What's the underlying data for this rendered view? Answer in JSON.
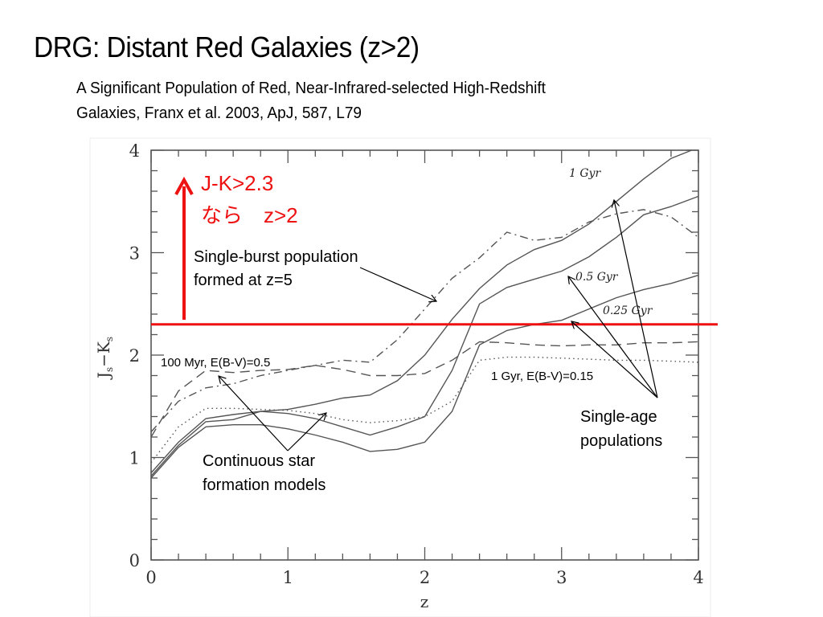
{
  "slide": {
    "title": "DRG: Distant Red Galaxies (z>2)",
    "subtitle_line1": "A Significant Population of Red, Near-Infrared-selected High-Redshift",
    "subtitle_line2": "Galaxies, Franx et al. 2003, ApJ, 587, L79"
  },
  "chart_data": {
    "type": "line",
    "title": "",
    "xlabel": "z",
    "ylabel": "Js−Ks",
    "ylabel_main_J": "J",
    "ylabel_sub": "s",
    "ylabel_minus": "−",
    "ylabel_main_K": "K",
    "xlim": [
      0,
      4
    ],
    "ylim": [
      0,
      4
    ],
    "x_ticks": [
      0,
      1,
      2,
      3,
      4
    ],
    "x_tick_labels": [
      "0",
      "1",
      "2",
      "3",
      "4"
    ],
    "y_ticks": [
      0,
      1,
      2,
      3,
      4
    ],
    "y_tick_labels": [
      "0",
      "1",
      "2",
      "3",
      "4"
    ],
    "x_minor_step": 0.2,
    "y_minor_step": 0.2,
    "grid": false,
    "threshold": {
      "value": 2.3,
      "color": "#ee1111",
      "label_line1": "J-K>2.3",
      "label_line2": "なら　z>2"
    },
    "series": [
      {
        "name": "1 Gyr single-age",
        "style": "solid",
        "x": [
          0,
          0.2,
          0.4,
          0.6,
          0.8,
          1.0,
          1.2,
          1.4,
          1.6,
          1.8,
          2.0,
          2.2,
          2.4,
          2.6,
          2.8,
          3.0,
          3.2,
          3.4,
          3.6,
          3.8,
          3.95
        ],
        "y": [
          0.85,
          1.15,
          1.38,
          1.42,
          1.45,
          1.47,
          1.52,
          1.58,
          1.61,
          1.75,
          2.0,
          2.35,
          2.65,
          2.88,
          3.03,
          3.12,
          3.28,
          3.5,
          3.72,
          3.92,
          4.0
        ]
      },
      {
        "name": "0.5 Gyr single-age",
        "style": "solid",
        "x": [
          0,
          0.2,
          0.4,
          0.6,
          0.8,
          1.0,
          1.2,
          1.4,
          1.6,
          1.8,
          2.0,
          2.2,
          2.4,
          2.6,
          2.8,
          3.0,
          3.2,
          3.4,
          3.6,
          3.8,
          4.0
        ],
        "y": [
          0.82,
          1.12,
          1.35,
          1.37,
          1.45,
          1.43,
          1.38,
          1.3,
          1.22,
          1.3,
          1.4,
          1.85,
          2.5,
          2.66,
          2.74,
          2.82,
          2.96,
          3.15,
          3.37,
          3.45,
          3.55
        ]
      },
      {
        "name": "0.25 Gyr single-age",
        "style": "solid",
        "x": [
          0,
          0.2,
          0.4,
          0.6,
          0.8,
          1.0,
          1.2,
          1.4,
          1.6,
          1.8,
          2.0,
          2.2,
          2.4,
          2.6,
          2.8,
          3.0,
          3.2,
          3.4,
          3.6,
          3.8,
          4.0
        ],
        "y": [
          0.8,
          1.1,
          1.3,
          1.32,
          1.32,
          1.28,
          1.22,
          1.15,
          1.06,
          1.08,
          1.15,
          1.45,
          2.1,
          2.24,
          2.3,
          2.34,
          2.45,
          2.56,
          2.64,
          2.7,
          2.78
        ]
      },
      {
        "name": "Single-burst population formed at z=5",
        "style": "dashdot",
        "x": [
          0,
          0.2,
          0.4,
          0.6,
          0.8,
          1.0,
          1.2,
          1.4,
          1.6,
          1.8,
          2.0,
          2.2,
          2.4,
          2.6,
          2.8,
          3.0,
          3.2,
          3.4,
          3.6,
          3.8,
          4.0
        ],
        "y": [
          1.25,
          1.55,
          1.68,
          1.72,
          1.8,
          1.85,
          1.9,
          1.95,
          1.93,
          2.15,
          2.45,
          2.75,
          2.95,
          3.2,
          3.12,
          3.15,
          3.3,
          3.38,
          3.42,
          3.35,
          3.15
        ]
      },
      {
        "name": "100 Myr, E(B-V)=0.5",
        "style": "dashed",
        "x": [
          0,
          0.2,
          0.4,
          0.6,
          0.8,
          1.0,
          1.2,
          1.4,
          1.6,
          1.8,
          2.0,
          2.2,
          2.4,
          2.6,
          2.8,
          3.0,
          3.2,
          3.4,
          3.6,
          3.8,
          4.0
        ],
        "y": [
          1.2,
          1.65,
          1.85,
          1.83,
          1.85,
          1.86,
          1.9,
          1.86,
          1.8,
          1.8,
          1.82,
          1.95,
          2.13,
          2.12,
          2.1,
          2.09,
          2.1,
          2.1,
          2.12,
          2.12,
          2.13
        ]
      },
      {
        "name": "1 Gyr, E(B-V)=0.15",
        "style": "dotted",
        "x": [
          0,
          0.2,
          0.4,
          0.6,
          0.8,
          1.0,
          1.2,
          1.4,
          1.6,
          1.8,
          2.0,
          2.2,
          2.4,
          2.6,
          2.8,
          3.0,
          3.2,
          3.4,
          3.6,
          3.8,
          4.0
        ],
        "y": [
          0.95,
          1.3,
          1.48,
          1.48,
          1.47,
          1.46,
          1.43,
          1.37,
          1.34,
          1.36,
          1.4,
          1.55,
          1.95,
          1.98,
          1.98,
          1.97,
          1.96,
          1.95,
          1.95,
          1.94,
          1.93
        ]
      }
    ],
    "annotations": [
      {
        "id": "single-burst",
        "line1": "Single-burst population",
        "line2": "formed at z=5"
      },
      {
        "id": "100myr",
        "text": "100 Myr, E(B-V)=0.5"
      },
      {
        "id": "1gyr-ebv",
        "text": "1 Gyr, E(B-V)=0.15"
      },
      {
        "id": "continuous",
        "line1": "Continuous star",
        "line2": "formation models"
      },
      {
        "id": "single-age",
        "line1": "Single-age",
        "line2": "populations"
      },
      {
        "id": "gyr1",
        "text": "1  Gyr"
      },
      {
        "id": "gyr05",
        "text": "0.5  Gyr"
      },
      {
        "id": "gyr025",
        "text": "0.25  Gyr"
      }
    ]
  }
}
